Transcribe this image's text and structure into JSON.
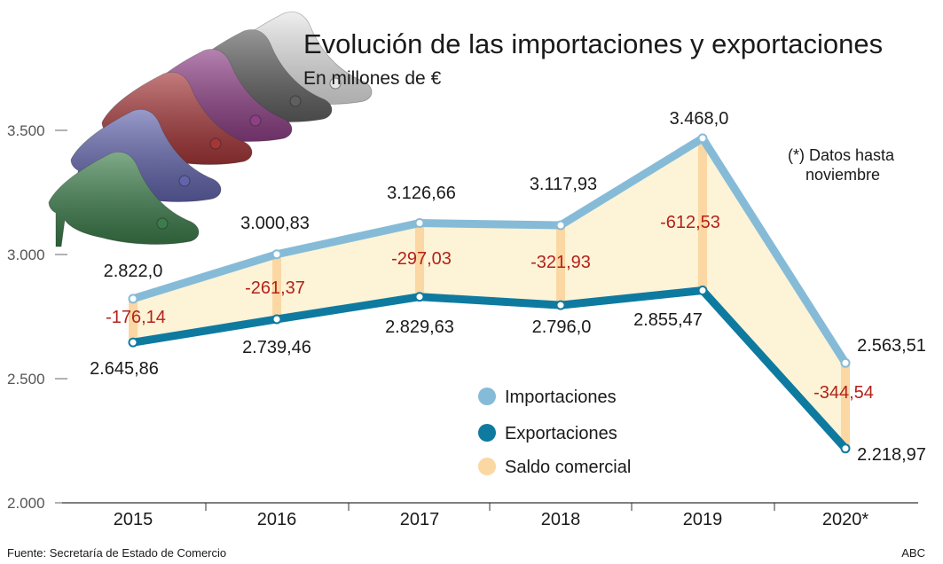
{
  "chart_data": {
    "type": "line",
    "title": "Evolución de las importaciones y exportaciones",
    "subtitle": "En millones de €",
    "categories": [
      "2015",
      "2016",
      "2017",
      "2018",
      "2019",
      "2020*"
    ],
    "series": [
      {
        "name": "Importaciones",
        "values": [
          2822.0,
          3000.83,
          3126.66,
          3117.93,
          3468.0,
          2563.51
        ],
        "labels": [
          "2.822,0",
          "3.000,83",
          "3.126,66",
          "3.117,93",
          "3.468,0",
          "2.563,51"
        ],
        "color": "#86bbd8"
      },
      {
        "name": "Exportaciones",
        "values": [
          2645.86,
          2739.46,
          2829.63,
          2796.0,
          2855.47,
          2218.97
        ],
        "labels": [
          "2.645,86",
          "2.739,46",
          "2.829,63",
          "2.796,0",
          "2.855,47",
          "2.218,97"
        ],
        "color": "#0e7aa0"
      },
      {
        "name": "Saldo comercial",
        "values": [
          -176.14,
          -261.37,
          -297.03,
          -321.93,
          -612.53,
          -344.54
        ],
        "labels": [
          "-176,14",
          "-261,37",
          "-297,03",
          "-321,93",
          "-612,53",
          "-344,54"
        ],
        "color": "#fbd7a3"
      }
    ],
    "ylim": [
      2000,
      3500
    ],
    "yticks": [
      2000,
      2500,
      3000,
      3500
    ],
    "ytick_labels": [
      "2.000",
      "2.500",
      "3.000",
      "3.500"
    ],
    "annotation": [
      "(*) Datos hasta",
      "noviembre"
    ],
    "source": "Fuente: Secretaría de Estado de Comercio",
    "credit": "ABC",
    "band_fill": "#fdf3d6",
    "balance_text_color": "#b3221b",
    "legend_position": "center-right"
  }
}
